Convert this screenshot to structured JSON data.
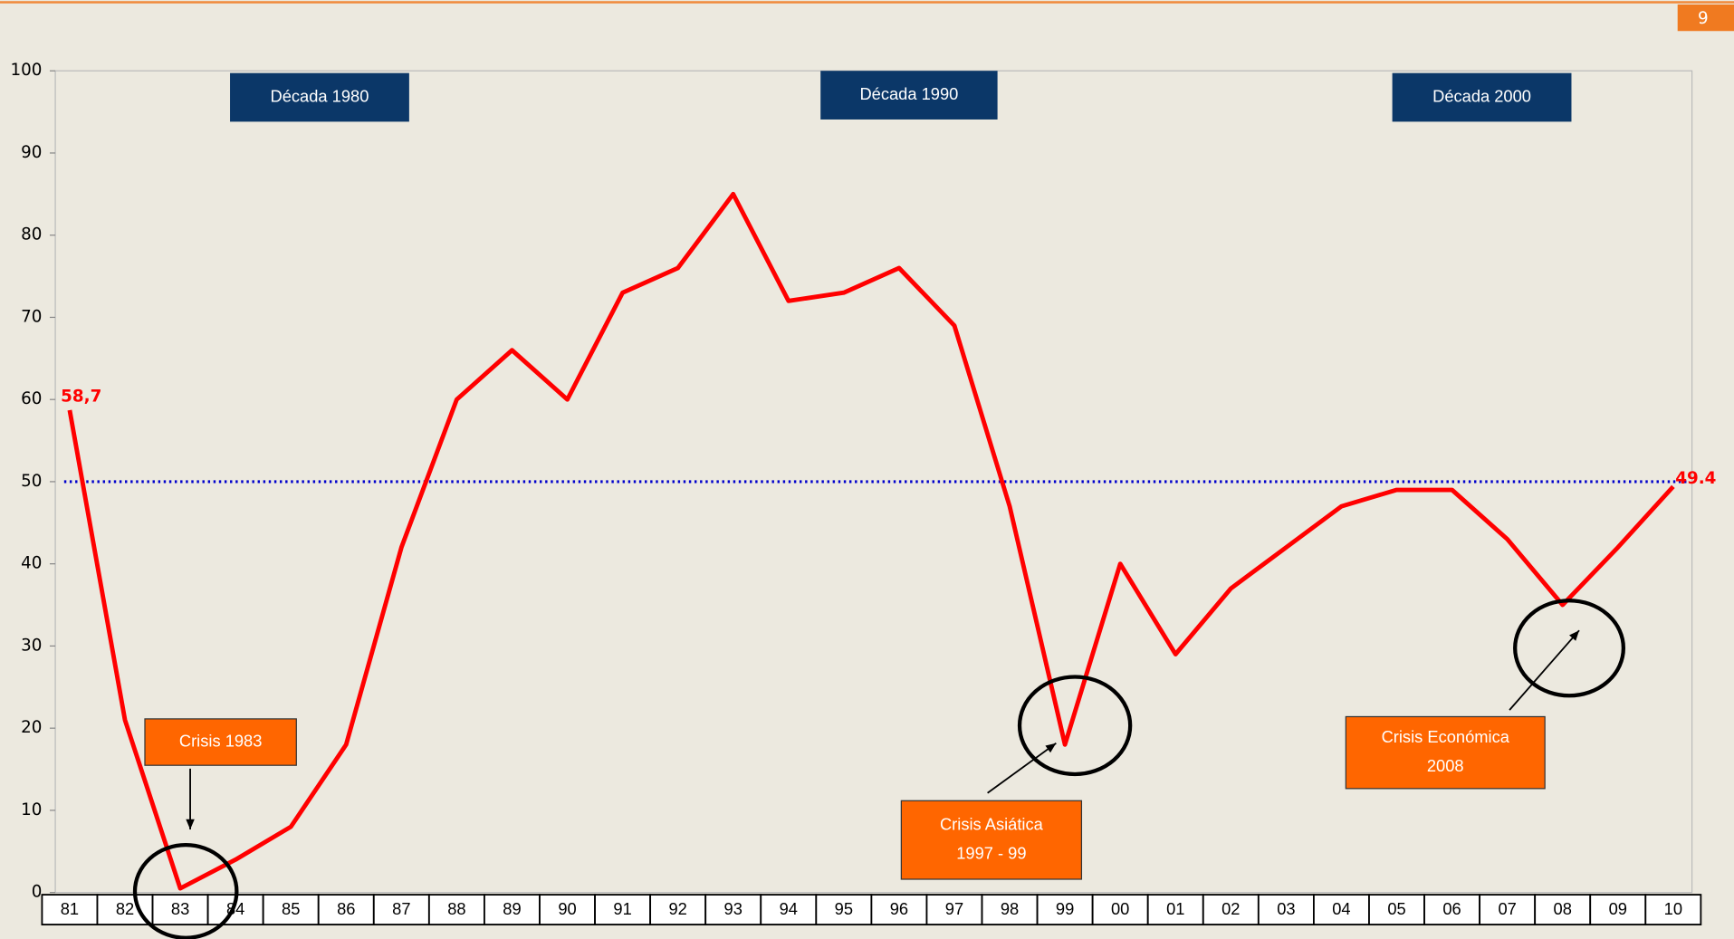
{
  "page_number": "9",
  "chart_data": {
    "type": "line",
    "categories": [
      "81",
      "82",
      "83",
      "84",
      "85",
      "86",
      "87",
      "88",
      "89",
      "90",
      "91",
      "92",
      "93",
      "94",
      "95",
      "96",
      "97",
      "98",
      "99",
      "00",
      "01",
      "02",
      "03",
      "04",
      "05",
      "06",
      "07",
      "08",
      "09",
      "10"
    ],
    "series": [
      {
        "color": "#ff0000",
        "values": [
          58.7,
          21,
          0.5,
          4,
          8,
          18,
          42,
          60,
          66,
          60,
          73,
          76,
          85,
          72,
          73,
          76,
          69,
          47,
          18,
          40,
          29,
          37,
          42,
          47,
          49,
          49,
          43,
          35,
          42,
          49.4
        ],
        "value_labels": [
          "58,7",
          null,
          null,
          null,
          null,
          null,
          null,
          null,
          null,
          null,
          null,
          null,
          null,
          null,
          null,
          null,
          null,
          null,
          null,
          null,
          null,
          null,
          null,
          null,
          null,
          null,
          null,
          null,
          null,
          "49.4"
        ]
      }
    ],
    "ylim": [
      0,
      100
    ],
    "yticks": [
      0,
      10,
      20,
      30,
      40,
      50,
      60,
      70,
      80,
      90,
      100
    ],
    "reference_line": {
      "value": 50,
      "color": "#0000cc"
    },
    "annotations": [
      [
        "Década 1980"
      ],
      [
        "Década 1990"
      ],
      [
        "Década 2000"
      ],
      [
        "Crisis 1983"
      ],
      [
        "Crisis Asiática",
        "1997 - 99"
      ],
      [
        "Crisis Económica",
        "2008"
      ]
    ]
  }
}
